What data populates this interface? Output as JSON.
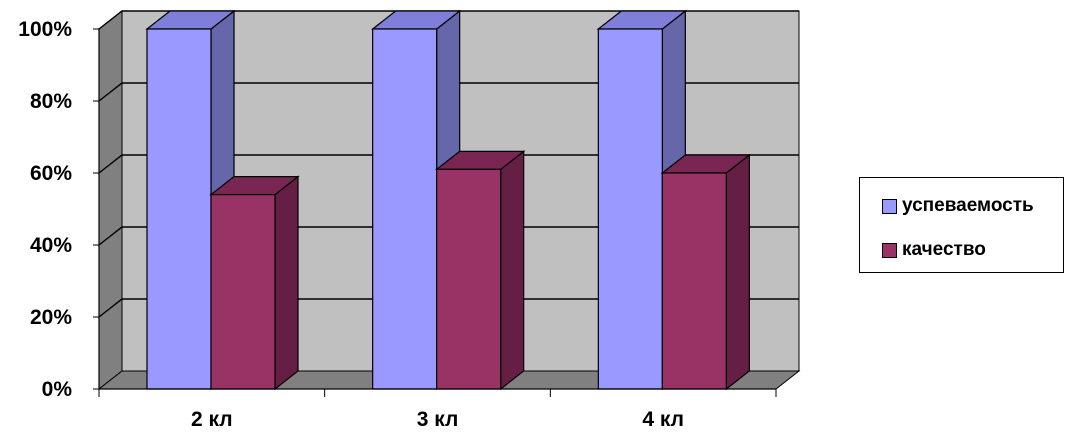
{
  "chart_data": {
    "type": "bar",
    "categories": [
      "2 кл",
      "3 кл",
      "4 кл"
    ],
    "series": [
      {
        "name": "успеваемость",
        "values": [
          100,
          100,
          100
        ],
        "color": "#9999ff"
      },
      {
        "name": "качество",
        "values": [
          54,
          61,
          60
        ],
        "color": "#993366"
      }
    ],
    "yticks": [
      "0%",
      "20%",
      "40%",
      "60%",
      "80%",
      "100%"
    ],
    "ylim": [
      0,
      100
    ],
    "grid": true,
    "legend_position": "right",
    "three_d": true,
    "wall_color": "#c0c0c0",
    "floor_color": "#808080"
  }
}
